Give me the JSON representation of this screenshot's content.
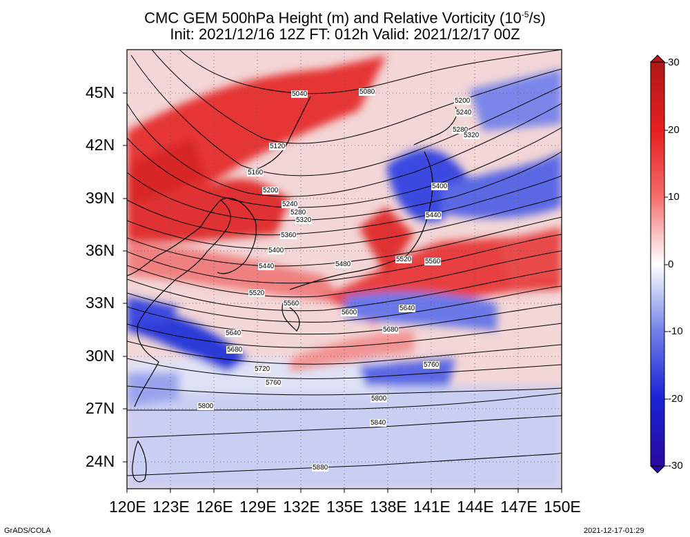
{
  "title_line1": "CMC GEM 500hPa Height (m) and Relative Vorticity (10",
  "title_sup": "-5",
  "title_end": "/s)",
  "title_line2": "Init: 2021/12/16 12Z  FT: 012h  Valid: 2021/12/17 00Z",
  "footer_left": "GrADS/COLA",
  "footer_right": "2021-12-17-01:29",
  "lat_labels": [
    "45N",
    "42N",
    "39N",
    "36N",
    "33N",
    "30N",
    "27N",
    "24N"
  ],
  "lon_labels": [
    "120E",
    "123E",
    "126E",
    "129E",
    "132E",
    "135E",
    "138E",
    "141E",
    "144E",
    "147E",
    "150E"
  ],
  "colorbar": {
    "tick_labels": [
      "30",
      "20",
      "10",
      "0",
      "-10",
      "-20",
      "-30"
    ],
    "colors_top_to_bottom": [
      "#b01818",
      "#e62020",
      "#f46a6a",
      "#fbc6c6",
      "#ffffff",
      "#c6cdf5",
      "#6e7de8",
      "#1a24d6",
      "#2a0a9e"
    ]
  },
  "contour_labels": [
    "5040",
    "5080",
    "5120",
    "5160",
    "5200",
    "5240",
    "5280",
    "5320",
    "5360",
    "5400",
    "5440",
    "5480",
    "5520",
    "5560",
    "5600",
    "5640",
    "5680",
    "5720",
    "5760",
    "5800",
    "5840",
    "5880"
  ],
  "contour_label_extra": [
    "5200",
    "5240",
    "5280",
    "5320",
    "5400",
    "5440",
    "5520",
    "5560",
    "5640",
    "5680",
    "5760",
    "5800",
    "5840",
    "5040",
    "5080",
    "5120",
    "5160"
  ]
}
